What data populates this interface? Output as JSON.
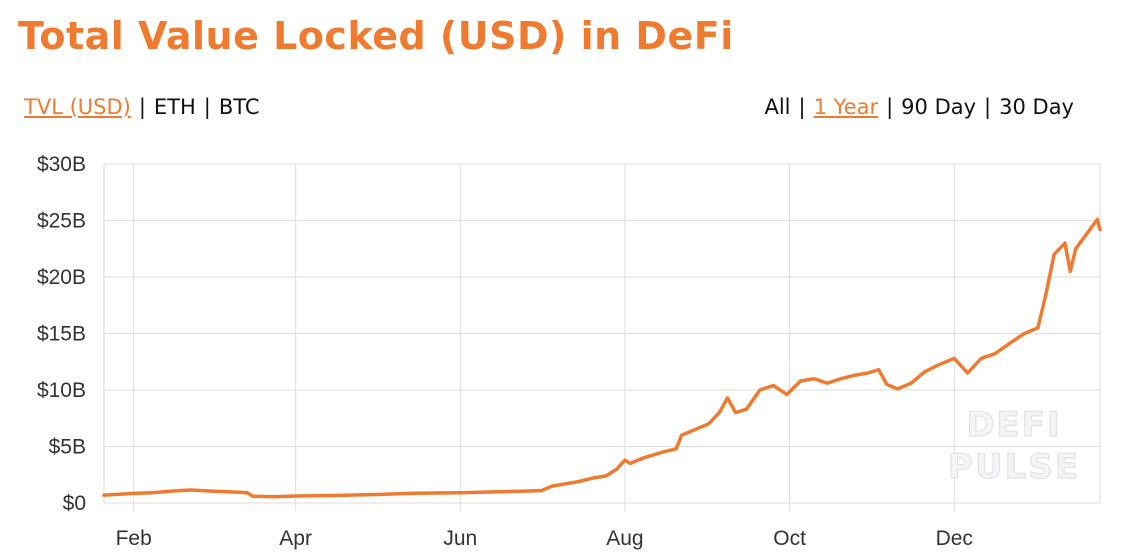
{
  "title": "Total Value Locked (USD) in DeFi",
  "metric_tabs": [
    {
      "label": "TVL (USD)",
      "active": true
    },
    {
      "label": "ETH",
      "active": false
    },
    {
      "label": "BTC",
      "active": false
    }
  ],
  "range_tabs": [
    {
      "label": "All",
      "active": false
    },
    {
      "label": "1 Year",
      "active": true
    },
    {
      "label": "90 Day",
      "active": false
    },
    {
      "label": "30 Day",
      "active": false
    }
  ],
  "separator": "|",
  "watermark": [
    "DEFI",
    "PULSE"
  ],
  "colors": {
    "accent": "#ef7b30",
    "grid": "#dddddd",
    "line": "#ef7b30"
  },
  "chart_data": {
    "type": "line",
    "title": "Total Value Locked (USD) in DeFi",
    "xlabel": "",
    "ylabel": "",
    "x_tick_labels": [
      "Feb",
      "Apr",
      "Jun",
      "Aug",
      "Oct",
      "Dec"
    ],
    "y_tick_labels": [
      "$0",
      "$5B",
      "$10B",
      "$15B",
      "$20B",
      "$25B",
      "$30B"
    ],
    "y_tick_values": [
      0,
      5,
      10,
      15,
      20,
      25,
      30
    ],
    "ylim": [
      0,
      30
    ],
    "y_unit": "billion USD",
    "grid": true,
    "legend": "none",
    "series": [
      {
        "values": [
          [
            "2020-01-21",
            0.7
          ],
          [
            "2020-02-01",
            0.85
          ],
          [
            "2020-02-08",
            0.9
          ],
          [
            "2020-02-15",
            1.05
          ],
          [
            "2020-02-22",
            1.15
          ],
          [
            "2020-03-01",
            1.05
          ],
          [
            "2020-03-08",
            0.98
          ],
          [
            "2020-03-14",
            0.92
          ],
          [
            "2020-03-16",
            0.6
          ],
          [
            "2020-03-24",
            0.55
          ],
          [
            "2020-04-01",
            0.62
          ],
          [
            "2020-04-15",
            0.66
          ],
          [
            "2020-05-01",
            0.75
          ],
          [
            "2020-05-15",
            0.87
          ],
          [
            "2020-06-01",
            0.9
          ],
          [
            "2020-06-15",
            1.0
          ],
          [
            "2020-06-25",
            1.05
          ],
          [
            "2020-07-01",
            1.1
          ],
          [
            "2020-07-05",
            1.5
          ],
          [
            "2020-07-10",
            1.7
          ],
          [
            "2020-07-15",
            1.9
          ],
          [
            "2020-07-20",
            2.2
          ],
          [
            "2020-07-25",
            2.4
          ],
          [
            "2020-07-29",
            3.0
          ],
          [
            "2020-08-01",
            3.8
          ],
          [
            "2020-08-03",
            3.5
          ],
          [
            "2020-08-08",
            4.0
          ],
          [
            "2020-08-15",
            4.5
          ],
          [
            "2020-08-20",
            4.8
          ],
          [
            "2020-08-22",
            6.0
          ],
          [
            "2020-08-28",
            6.6
          ],
          [
            "2020-09-01",
            7.0
          ],
          [
            "2020-09-05",
            8.0
          ],
          [
            "2020-09-08",
            9.3
          ],
          [
            "2020-09-11",
            8.0
          ],
          [
            "2020-09-15",
            8.3
          ],
          [
            "2020-09-20",
            10.0
          ],
          [
            "2020-09-25",
            10.4
          ],
          [
            "2020-09-30",
            9.6
          ],
          [
            "2020-10-05",
            10.8
          ],
          [
            "2020-10-10",
            11.0
          ],
          [
            "2020-10-15",
            10.6
          ],
          [
            "2020-10-20",
            11.0
          ],
          [
            "2020-10-25",
            11.3
          ],
          [
            "2020-10-30",
            11.5
          ],
          [
            "2020-11-03",
            11.8
          ],
          [
            "2020-11-06",
            10.5
          ],
          [
            "2020-11-10",
            10.1
          ],
          [
            "2020-11-15",
            10.6
          ],
          [
            "2020-11-20",
            11.6
          ],
          [
            "2020-11-25",
            12.2
          ],
          [
            "2020-12-01",
            12.8
          ],
          [
            "2020-12-06",
            11.5
          ],
          [
            "2020-12-11",
            12.8
          ],
          [
            "2020-12-16",
            13.2
          ],
          [
            "2020-12-22",
            14.2
          ],
          [
            "2020-12-27",
            15.0
          ],
          [
            "2021-01-01",
            15.5
          ],
          [
            "2021-01-04",
            18.5
          ],
          [
            "2021-01-07",
            22.0
          ],
          [
            "2021-01-11",
            23.0
          ],
          [
            "2021-01-13",
            20.5
          ],
          [
            "2021-01-15",
            22.5
          ],
          [
            "2021-01-19",
            23.8
          ],
          [
            "2021-01-23",
            25.1
          ],
          [
            "2021-01-24",
            24.2
          ]
        ]
      }
    ]
  }
}
